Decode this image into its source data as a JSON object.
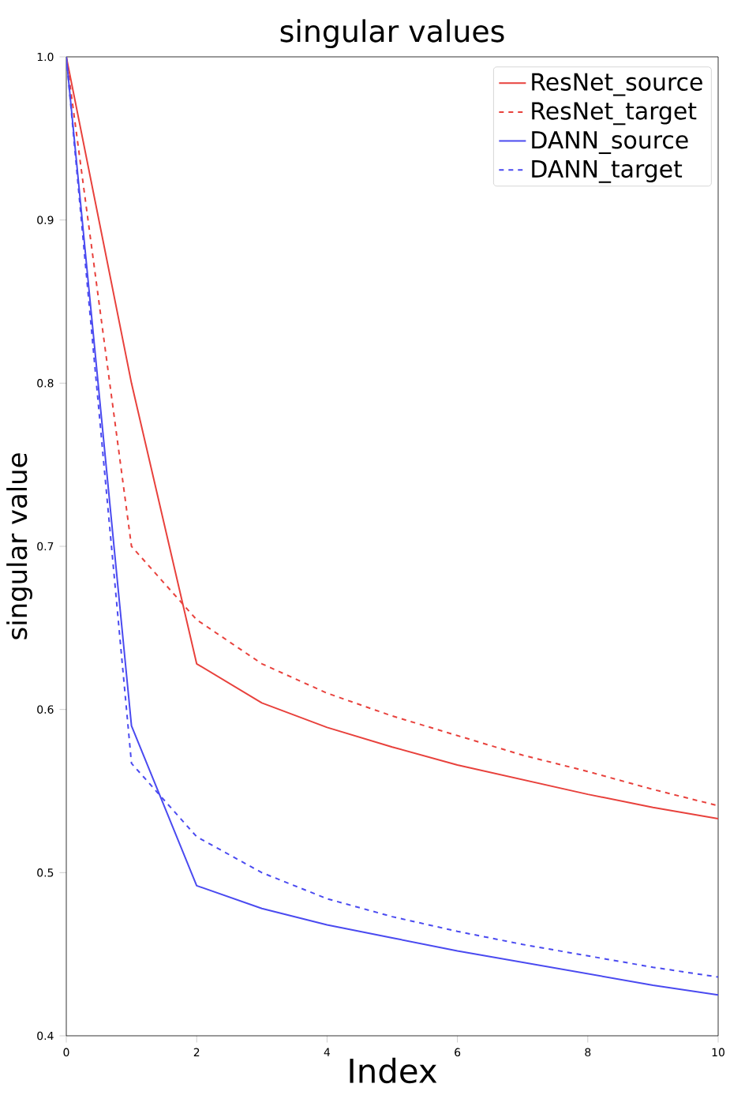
{
  "chart_data": {
    "type": "line",
    "title": "singular values",
    "xlabel": "Index",
    "ylabel": "singular value",
    "x": [
      0,
      1,
      2,
      3,
      4,
      5,
      6,
      7,
      8,
      9,
      10
    ],
    "series": [
      {
        "name": "ResNet_source",
        "color": "#e8413c",
        "line_style": "solid",
        "values": [
          1.0,
          0.8,
          0.628,
          0.604,
          0.589,
          0.577,
          0.566,
          0.557,
          0.548,
          0.54,
          0.533
        ]
      },
      {
        "name": "ResNet_target",
        "color": "#e8413c",
        "line_style": "dashed",
        "values": [
          1.0,
          0.7,
          0.655,
          0.628,
          0.61,
          0.596,
          0.584,
          0.572,
          0.562,
          0.551,
          0.541
        ]
      },
      {
        "name": "DANN_source",
        "color": "#4a4af0",
        "line_style": "solid",
        "values": [
          1.0,
          0.59,
          0.492,
          0.478,
          0.468,
          0.46,
          0.452,
          0.445,
          0.438,
          0.431,
          0.425
        ]
      },
      {
        "name": "DANN_target",
        "color": "#4a4af0",
        "line_style": "dashed",
        "values": [
          1.0,
          0.567,
          0.522,
          0.5,
          0.484,
          0.473,
          0.464,
          0.456,
          0.449,
          0.442,
          0.436
        ]
      }
    ],
    "xlim": [
      0,
      10
    ],
    "ylim": [
      0.4,
      1.0
    ],
    "xticks": [
      0,
      2,
      4,
      6,
      8,
      10
    ],
    "yticks": [
      0.4,
      0.5,
      0.6,
      0.7,
      0.8,
      0.9,
      {
        "value": 1.0,
        "label": "1.0"
      }
    ],
    "grid": false,
    "legend": "top right",
    "marker": "none"
  }
}
